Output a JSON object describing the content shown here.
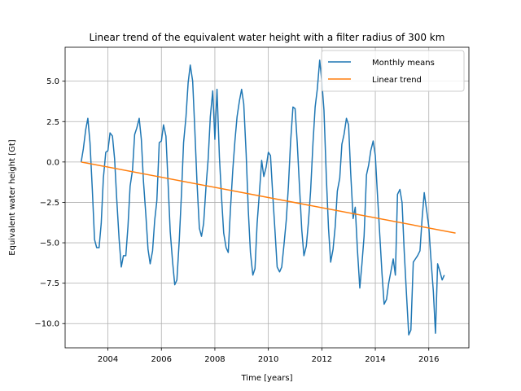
{
  "chart_data": {
    "type": "line",
    "title": "Linear trend of the equivalent water height with a filter radius of 300 km",
    "xlabel": "Time [years]",
    "ylabel": "Equivalent water height [Gt]",
    "xlim": [
      2002.4,
      2017.5
    ],
    "ylim": [
      -11.5,
      7.1
    ],
    "xticks": [
      2004,
      2006,
      2008,
      2010,
      2012,
      2014,
      2016
    ],
    "xtick_labels": [
      "2004",
      "2006",
      "2008",
      "2010",
      "2012",
      "2014",
      "2016"
    ],
    "yticks": [
      -10.0,
      -7.5,
      -5.0,
      -2.5,
      0.0,
      2.5,
      5.0
    ],
    "ytick_labels": [
      "−10.0",
      "−7.5",
      "−5.0",
      "−2.5",
      "0.0",
      "2.5",
      "5.0"
    ],
    "grid": true,
    "legend_position": "top-right",
    "series": [
      {
        "name": "Monthly means",
        "color": "#1f77b4",
        "points": [
          [
            2003.0,
            0.0
          ],
          [
            2003.08,
            0.8
          ],
          [
            2003.17,
            2.0
          ],
          [
            2003.25,
            2.7
          ],
          [
            2003.33,
            1.2
          ],
          [
            2003.42,
            -1.8
          ],
          [
            2003.5,
            -4.8
          ],
          [
            2003.58,
            -5.3
          ],
          [
            2003.67,
            -5.3
          ],
          [
            2003.75,
            -3.8
          ],
          [
            2003.83,
            -1.0
          ],
          [
            2003.92,
            0.6
          ],
          [
            2004.0,
            0.7
          ],
          [
            2004.08,
            1.8
          ],
          [
            2004.17,
            1.6
          ],
          [
            2004.25,
            0.2
          ],
          [
            2004.33,
            -2.3
          ],
          [
            2004.42,
            -4.8
          ],
          [
            2004.5,
            -6.5
          ],
          [
            2004.58,
            -5.8
          ],
          [
            2004.67,
            -5.8
          ],
          [
            2004.75,
            -4.0
          ],
          [
            2004.83,
            -1.5
          ],
          [
            2004.92,
            -0.5
          ],
          [
            2005.0,
            1.7
          ],
          [
            2005.08,
            2.1
          ],
          [
            2005.17,
            2.7
          ],
          [
            2005.25,
            1.4
          ],
          [
            2005.33,
            -1.2
          ],
          [
            2005.42,
            -3.3
          ],
          [
            2005.5,
            -5.4
          ],
          [
            2005.58,
            -6.3
          ],
          [
            2005.67,
            -5.5
          ],
          [
            2005.75,
            -3.6
          ],
          [
            2005.83,
            -2.4
          ],
          [
            2005.92,
            1.2
          ],
          [
            2006.0,
            1.3
          ],
          [
            2006.08,
            2.3
          ],
          [
            2006.17,
            1.6
          ],
          [
            2006.25,
            -1.3
          ],
          [
            2006.33,
            -4.3
          ],
          [
            2006.42,
            -6.2
          ],
          [
            2006.5,
            -7.6
          ],
          [
            2006.58,
            -7.3
          ],
          [
            2006.67,
            -4.8
          ],
          [
            2006.75,
            -2.0
          ],
          [
            2006.83,
            1.2
          ],
          [
            2006.92,
            2.8
          ],
          [
            2007.0,
            4.9
          ],
          [
            2007.08,
            6.0
          ],
          [
            2007.17,
            5.0
          ],
          [
            2007.25,
            2.0
          ],
          [
            2007.33,
            -1.2
          ],
          [
            2007.42,
            -4.1
          ],
          [
            2007.5,
            -4.6
          ],
          [
            2007.58,
            -3.8
          ],
          [
            2007.67,
            -1.5
          ],
          [
            2007.75,
            0.2
          ],
          [
            2007.83,
            2.8
          ],
          [
            2007.92,
            4.4
          ],
          [
            2008.0,
            1.4
          ],
          [
            2008.08,
            4.5
          ],
          [
            2008.17,
            0.3
          ],
          [
            2008.25,
            -2.2
          ],
          [
            2008.33,
            -4.4
          ],
          [
            2008.42,
            -5.3
          ],
          [
            2008.5,
            -5.6
          ],
          [
            2008.58,
            -3.0
          ],
          [
            2008.67,
            -0.5
          ],
          [
            2008.75,
            1.3
          ],
          [
            2008.83,
            2.8
          ],
          [
            2008.92,
            3.8
          ],
          [
            2009.0,
            4.5
          ],
          [
            2009.08,
            3.6
          ],
          [
            2009.17,
            0.5
          ],
          [
            2009.25,
            -3.0
          ],
          [
            2009.33,
            -5.6
          ],
          [
            2009.42,
            -7.0
          ],
          [
            2009.5,
            -6.6
          ],
          [
            2009.58,
            -3.8
          ],
          [
            2009.67,
            -1.8
          ],
          [
            2009.75,
            0.1
          ],
          [
            2009.83,
            -0.9
          ],
          [
            2009.92,
            -0.3
          ],
          [
            2010.0,
            0.6
          ],
          [
            2010.08,
            0.4
          ],
          [
            2010.17,
            -2.2
          ],
          [
            2010.25,
            -4.3
          ],
          [
            2010.33,
            -6.5
          ],
          [
            2010.42,
            -6.8
          ],
          [
            2010.5,
            -6.5
          ],
          [
            2010.58,
            -5.2
          ],
          [
            2010.67,
            -3.6
          ],
          [
            2010.75,
            -1.5
          ],
          [
            2010.83,
            1.2
          ],
          [
            2010.92,
            3.4
          ],
          [
            2011.0,
            3.3
          ],
          [
            2011.08,
            1.2
          ],
          [
            2011.17,
            -1.7
          ],
          [
            2011.25,
            -4.2
          ],
          [
            2011.33,
            -5.8
          ],
          [
            2011.42,
            -5.2
          ],
          [
            2011.5,
            -3.7
          ],
          [
            2011.58,
            -1.8
          ],
          [
            2011.67,
            1.2
          ],
          [
            2011.75,
            3.4
          ],
          [
            2011.83,
            4.5
          ],
          [
            2011.92,
            6.3
          ],
          [
            2012.0,
            5.0
          ],
          [
            2012.08,
            3.2
          ],
          [
            2012.17,
            -1.0
          ],
          [
            2012.25,
            -4.1
          ],
          [
            2012.33,
            -6.2
          ],
          [
            2012.42,
            -5.4
          ],
          [
            2012.5,
            -4.0
          ],
          [
            2012.58,
            -1.8
          ],
          [
            2012.67,
            -1.0
          ],
          [
            2012.75,
            1.1
          ],
          [
            2012.83,
            1.7
          ],
          [
            2012.92,
            2.7
          ],
          [
            2013.0,
            2.3
          ],
          [
            2013.08,
            -0.7
          ],
          [
            2013.17,
            -3.5
          ],
          [
            2013.25,
            -2.8
          ],
          [
            2013.33,
            -5.4
          ],
          [
            2013.42,
            -7.8
          ],
          [
            2013.5,
            -6.3
          ],
          [
            2013.58,
            -4.6
          ],
          [
            2013.67,
            -0.8
          ],
          [
            2013.75,
            -0.2
          ],
          [
            2013.83,
            0.7
          ],
          [
            2013.92,
            1.3
          ],
          [
            2014.0,
            0.4
          ],
          [
            2014.08,
            -2.0
          ],
          [
            2014.17,
            -4.6
          ],
          [
            2014.25,
            -6.9
          ],
          [
            2014.33,
            -8.8
          ],
          [
            2014.42,
            -8.5
          ],
          [
            2014.5,
            -7.5
          ],
          [
            2014.58,
            -6.8
          ],
          [
            2014.67,
            -6.0
          ],
          [
            2014.75,
            -7.0
          ],
          [
            2014.83,
            -2.0
          ],
          [
            2014.92,
            -1.7
          ],
          [
            2015.0,
            -2.5
          ],
          [
            2015.08,
            -5.5
          ],
          [
            2015.17,
            -8.3
          ],
          [
            2015.25,
            -10.7
          ],
          [
            2015.33,
            -10.4
          ],
          [
            2015.42,
            -6.2
          ],
          [
            2015.5,
            -6.0
          ],
          [
            2015.58,
            -5.8
          ],
          [
            2015.67,
            -5.5
          ],
          [
            2015.75,
            -3.5
          ],
          [
            2015.83,
            -1.9
          ],
          [
            2015.92,
            -3.0
          ],
          [
            2016.0,
            -4.0
          ],
          [
            2016.08,
            -6.0
          ],
          [
            2016.17,
            -8.0
          ],
          [
            2016.25,
            -10.6
          ],
          [
            2016.33,
            -6.3
          ],
          [
            2016.42,
            -6.8
          ],
          [
            2016.5,
            -7.3
          ],
          [
            2016.58,
            -7.0
          ]
        ]
      },
      {
        "name": "Linear trend",
        "color": "#ff7f0e",
        "points": [
          [
            2003.0,
            0.0
          ],
          [
            2017.0,
            -4.4
          ]
        ]
      }
    ]
  }
}
